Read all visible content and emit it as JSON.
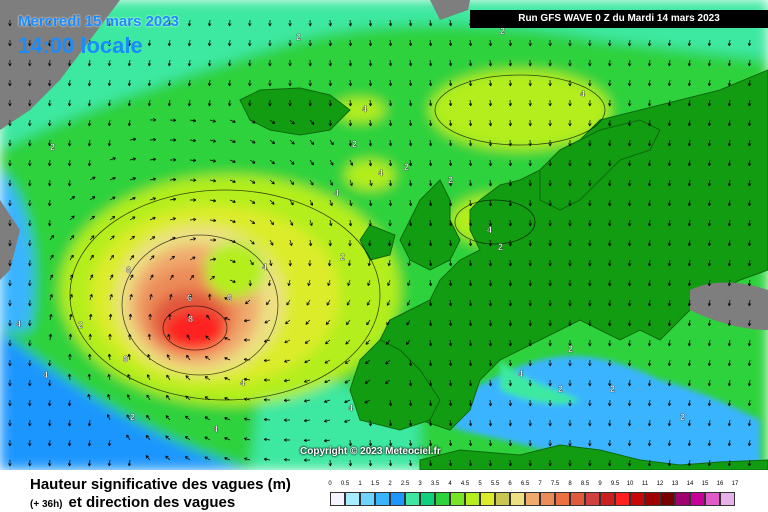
{
  "header": {
    "date": "Mercredi 15 mars 2023",
    "time": "14:00 locale",
    "run": "Run GFS WAVE 0 Z du Mardi 14 mars 2023"
  },
  "copyright": "Copyright © 2023 Meteociel.fr",
  "footer": {
    "title": "Hauteur significative des vagues (m)",
    "lead": "(+ 36h)",
    "subtitle": "et direction des vagues"
  },
  "legend": {
    "ticks": [
      "0",
      "0.5",
      "1",
      "1.5",
      "2",
      "2.5",
      "3",
      "3.5",
      "4",
      "4.5",
      "5",
      "5.5",
      "6",
      "6.5",
      "7",
      "7.5",
      "8",
      "8.5",
      "9",
      "9.5",
      "10",
      "11",
      "12",
      "13",
      "14",
      "15",
      "16",
      "17"
    ],
    "colors": [
      "#f4f4ff",
      "#a8ecff",
      "#6fd2ff",
      "#3ab4ff",
      "#1e96ff",
      "#3ce8a0",
      "#10d080",
      "#2ed23c",
      "#78e428",
      "#b4ee1c",
      "#dcec2c",
      "#c8c850",
      "#ece082",
      "#f0aa6e",
      "#ec8c58",
      "#ee7040",
      "#e05a3c",
      "#d04040",
      "#cc2020",
      "#ff2020",
      "#c80808",
      "#a00000",
      "#780000",
      "#a0006e",
      "#c8009a",
      "#e05ac8",
      "#e8b0e8"
    ]
  },
  "contour_labels": [
    "2",
    "4",
    "4",
    "2",
    "4",
    "4",
    "2",
    "2",
    "4",
    "2",
    "6",
    "6",
    "6",
    "8",
    "6",
    "2",
    "4",
    "4",
    "4",
    "4",
    "4",
    "2",
    "2",
    "2",
    "4",
    "2",
    "4",
    "2",
    "2",
    "2",
    "2"
  ],
  "colors": {
    "land": "#129c12",
    "nodata": "#7e7e7e",
    "accent": "#1a8cff"
  }
}
